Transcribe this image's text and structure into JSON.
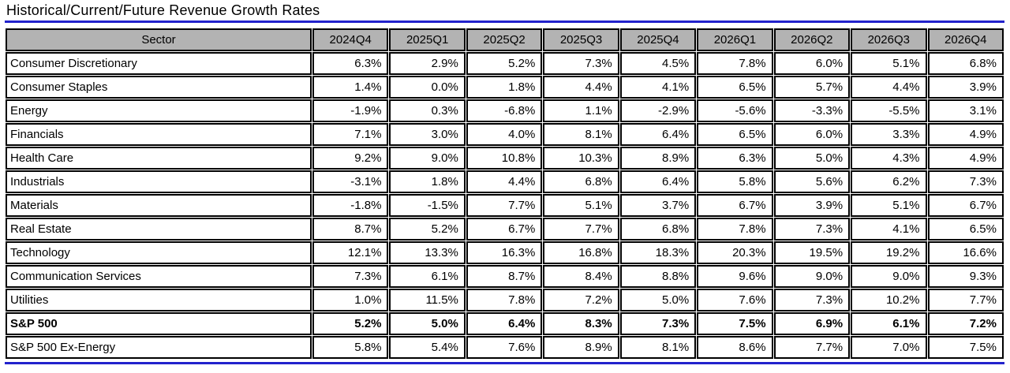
{
  "title": "Historical/Current/Future Revenue Growth Rates",
  "colors": {
    "accent_blue": "#2222cc",
    "header_bg": "#b3b3b3",
    "border": "#000000"
  },
  "table": {
    "columns": [
      "Sector",
      "2024Q4",
      "2025Q1",
      "2025Q2",
      "2025Q3",
      "2025Q4",
      "2026Q1",
      "2026Q2",
      "2026Q3",
      "2026Q4"
    ],
    "rows": [
      {
        "sector": "Consumer Discretionary",
        "bold": false,
        "values": [
          "6.3%",
          "2.9%",
          "5.2%",
          "7.3%",
          "4.5%",
          "7.8%",
          "6.0%",
          "5.1%",
          "6.8%"
        ]
      },
      {
        "sector": "Consumer Staples",
        "bold": false,
        "values": [
          "1.4%",
          "0.0%",
          "1.8%",
          "4.4%",
          "4.1%",
          "6.5%",
          "5.7%",
          "4.4%",
          "3.9%"
        ]
      },
      {
        "sector": "Energy",
        "bold": false,
        "values": [
          "-1.9%",
          "0.3%",
          "-6.8%",
          "1.1%",
          "-2.9%",
          "-5.6%",
          "-3.3%",
          "-5.5%",
          "3.1%"
        ]
      },
      {
        "sector": "Financials",
        "bold": false,
        "values": [
          "7.1%",
          "3.0%",
          "4.0%",
          "8.1%",
          "6.4%",
          "6.5%",
          "6.0%",
          "3.3%",
          "4.9%"
        ]
      },
      {
        "sector": "Health Care",
        "bold": false,
        "values": [
          "9.2%",
          "9.0%",
          "10.8%",
          "10.3%",
          "8.9%",
          "6.3%",
          "5.0%",
          "4.3%",
          "4.9%"
        ]
      },
      {
        "sector": "Industrials",
        "bold": false,
        "values": [
          "-3.1%",
          "1.8%",
          "4.4%",
          "6.8%",
          "6.4%",
          "5.8%",
          "5.6%",
          "6.2%",
          "7.3%"
        ]
      },
      {
        "sector": "Materials",
        "bold": false,
        "values": [
          "-1.8%",
          "-1.5%",
          "7.7%",
          "5.1%",
          "3.7%",
          "6.7%",
          "3.9%",
          "5.1%",
          "6.7%"
        ]
      },
      {
        "sector": "Real Estate",
        "bold": false,
        "values": [
          "8.7%",
          "5.2%",
          "6.7%",
          "7.7%",
          "6.8%",
          "7.8%",
          "7.3%",
          "4.1%",
          "6.5%"
        ]
      },
      {
        "sector": "Technology",
        "bold": false,
        "values": [
          "12.1%",
          "13.3%",
          "16.3%",
          "16.8%",
          "18.3%",
          "20.3%",
          "19.5%",
          "19.2%",
          "16.6%"
        ]
      },
      {
        "sector": "Communication Services",
        "bold": false,
        "values": [
          "7.3%",
          "6.1%",
          "8.7%",
          "8.4%",
          "8.8%",
          "9.6%",
          "9.0%",
          "9.0%",
          "9.3%"
        ]
      },
      {
        "sector": "Utilities",
        "bold": false,
        "values": [
          "1.0%",
          "11.5%",
          "7.8%",
          "7.2%",
          "5.0%",
          "7.6%",
          "7.3%",
          "10.2%",
          "7.7%"
        ]
      },
      {
        "sector": "S&P 500",
        "bold": true,
        "values": [
          "5.2%",
          "5.0%",
          "6.4%",
          "8.3%",
          "7.3%",
          "7.5%",
          "6.9%",
          "6.1%",
          "7.2%"
        ]
      },
      {
        "sector": "S&P 500 Ex-Energy",
        "bold": false,
        "values": [
          "5.8%",
          "5.4%",
          "7.6%",
          "8.9%",
          "8.1%",
          "8.6%",
          "7.7%",
          "7.0%",
          "7.5%"
        ]
      }
    ]
  },
  "chart_data": {
    "type": "table",
    "title": "Historical/Current/Future Revenue Growth Rates",
    "categories": [
      "2024Q4",
      "2025Q1",
      "2025Q2",
      "2025Q3",
      "2025Q4",
      "2026Q1",
      "2026Q2",
      "2026Q3",
      "2026Q4"
    ],
    "unit": "percent",
    "series": [
      {
        "name": "Consumer Discretionary",
        "values": [
          6.3,
          2.9,
          5.2,
          7.3,
          4.5,
          7.8,
          6.0,
          5.1,
          6.8
        ]
      },
      {
        "name": "Consumer Staples",
        "values": [
          1.4,
          0.0,
          1.8,
          4.4,
          4.1,
          6.5,
          5.7,
          4.4,
          3.9
        ]
      },
      {
        "name": "Energy",
        "values": [
          -1.9,
          0.3,
          -6.8,
          1.1,
          -2.9,
          -5.6,
          -3.3,
          -5.5,
          3.1
        ]
      },
      {
        "name": "Financials",
        "values": [
          7.1,
          3.0,
          4.0,
          8.1,
          6.4,
          6.5,
          6.0,
          3.3,
          4.9
        ]
      },
      {
        "name": "Health Care",
        "values": [
          9.2,
          9.0,
          10.8,
          10.3,
          8.9,
          6.3,
          5.0,
          4.3,
          4.9
        ]
      },
      {
        "name": "Industrials",
        "values": [
          -3.1,
          1.8,
          4.4,
          6.8,
          6.4,
          5.8,
          5.6,
          6.2,
          7.3
        ]
      },
      {
        "name": "Materials",
        "values": [
          -1.8,
          -1.5,
          7.7,
          5.1,
          3.7,
          6.7,
          3.9,
          5.1,
          6.7
        ]
      },
      {
        "name": "Real Estate",
        "values": [
          8.7,
          5.2,
          6.7,
          7.7,
          6.8,
          7.8,
          7.3,
          4.1,
          6.5
        ]
      },
      {
        "name": "Technology",
        "values": [
          12.1,
          13.3,
          16.3,
          16.8,
          18.3,
          20.3,
          19.5,
          19.2,
          16.6
        ]
      },
      {
        "name": "Communication Services",
        "values": [
          7.3,
          6.1,
          8.7,
          8.4,
          8.8,
          9.6,
          9.0,
          9.0,
          9.3
        ]
      },
      {
        "name": "Utilities",
        "values": [
          1.0,
          11.5,
          7.8,
          7.2,
          5.0,
          7.6,
          7.3,
          10.2,
          7.7
        ]
      },
      {
        "name": "S&P 500",
        "values": [
          5.2,
          5.0,
          6.4,
          8.3,
          7.3,
          7.5,
          6.9,
          6.1,
          7.2
        ]
      },
      {
        "name": "S&P 500 Ex-Energy",
        "values": [
          5.8,
          5.4,
          7.6,
          8.9,
          8.1,
          8.6,
          7.7,
          7.0,
          7.5
        ]
      }
    ]
  }
}
